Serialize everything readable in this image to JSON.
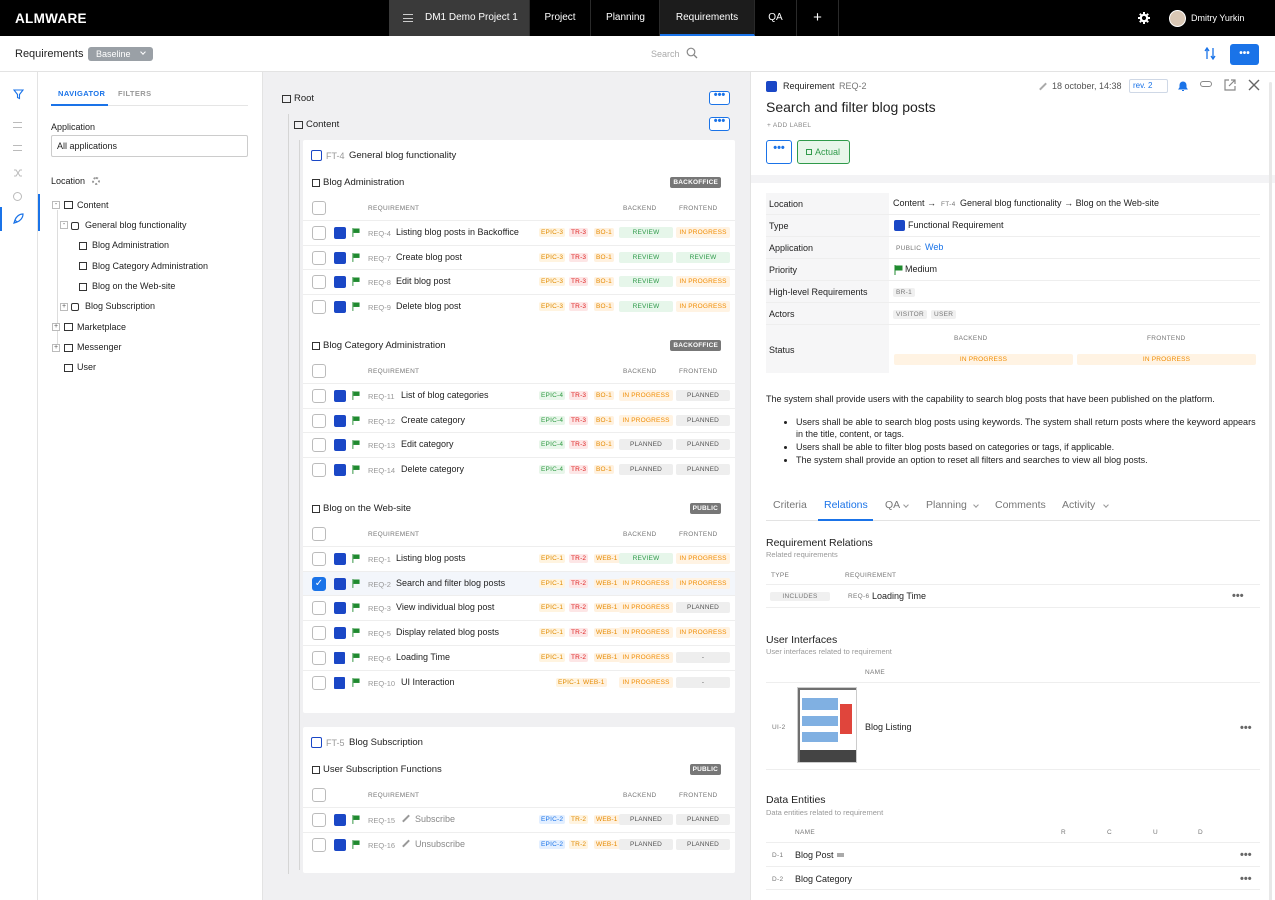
{
  "app": {
    "logo": "ALMWARE"
  },
  "top": {
    "project": "DM1 Demo Project 1",
    "tabs": {
      "project": "Project",
      "planning": "Planning",
      "requirements": "Requirements",
      "qa": "QA",
      "add": "+"
    },
    "user": "Dmitry Yurkin"
  },
  "header": {
    "title": "Requirements",
    "baseline": "Baseline",
    "search_placeholder": "Search",
    "more": "•••"
  },
  "nav": {
    "tab_navigator": "NAVIGATOR",
    "tab_filters": "FILTERS",
    "application_label": "Application",
    "application_value": "All applications",
    "location_label": "Location",
    "tree": {
      "content": "Content",
      "general": "General blog functionality",
      "blog_admin": "Blog Administration",
      "blog_cat": "Blog Category Administration",
      "blog_web": "Blog on the Web-site",
      "blog_sub": "Blog Subscription",
      "marketplace": "Marketplace",
      "messenger": "Messenger",
      "user": "User"
    }
  },
  "mid": {
    "root": "Root",
    "content": "Content",
    "dots": "•••",
    "ft4": {
      "id": "FT-4",
      "name": "General blog functionality"
    },
    "ft5": {
      "id": "FT-5",
      "name": "Blog Subscription"
    },
    "cols": {
      "req": "REQUIREMENT",
      "backend": "BACKEND",
      "frontend": "FRONTEND"
    },
    "g1": {
      "name": "Blog Administration",
      "badge": "BACKOFFICE",
      "rows": [
        {
          "id": "REQ-4",
          "name": "Listing blog posts in Backoffice",
          "t1": "EPIC-3",
          "t2": "TR-3",
          "t3": "BO-1",
          "be": "REVIEW",
          "fe": "IN PROGRESS"
        },
        {
          "id": "REQ-7",
          "name": "Create blog post",
          "t1": "EPIC-3",
          "t2": "TR-3",
          "t3": "BO-1",
          "be": "REVIEW",
          "fe": "REVIEW"
        },
        {
          "id": "REQ-8",
          "name": "Edit blog post",
          "t1": "EPIC-3",
          "t2": "TR-3",
          "t3": "BO-1",
          "be": "REVIEW",
          "fe": "IN PROGRESS"
        },
        {
          "id": "REQ-9",
          "name": "Delete blog post",
          "t1": "EPIC-3",
          "t2": "TR-3",
          "t3": "BO-1",
          "be": "REVIEW",
          "fe": "IN PROGRESS"
        }
      ]
    },
    "g2": {
      "name": "Blog Category Administration",
      "badge": "BACKOFFICE",
      "rows": [
        {
          "id": "REQ-11",
          "name": "List of blog categories",
          "t1": "EPIC-4",
          "t2": "TR-3",
          "t3": "BO-1",
          "be": "IN PROGRESS",
          "fe": "PLANNED"
        },
        {
          "id": "REQ-12",
          "name": "Create category",
          "t1": "EPIC-4",
          "t2": "TR-3",
          "t3": "BO-1",
          "be": "IN PROGRESS",
          "fe": "PLANNED"
        },
        {
          "id": "REQ-13",
          "name": "Edit category",
          "t1": "EPIC-4",
          "t2": "TR-3",
          "t3": "BO-1",
          "be": "PLANNED",
          "fe": "PLANNED"
        },
        {
          "id": "REQ-14",
          "name": "Delete category",
          "t1": "EPIC-4",
          "t2": "TR-3",
          "t3": "BO-1",
          "be": "PLANNED",
          "fe": "PLANNED"
        }
      ]
    },
    "g3": {
      "name": "Blog on the Web-site",
      "badge": "PUBLIC",
      "rows": [
        {
          "id": "REQ-1",
          "name": "Listing blog posts",
          "t1": "EPIC-1",
          "t2": "TR-2",
          "t3": "WEB-1",
          "be": "REVIEW",
          "fe": "IN PROGRESS"
        },
        {
          "id": "REQ-2",
          "name": "Search and filter blog posts",
          "t1": "EPIC-1",
          "t2": "TR-2",
          "t3": "WEB-1",
          "be": "IN PROGRESS",
          "fe": "IN PROGRESS"
        },
        {
          "id": "REQ-3",
          "name": "View individual blog post",
          "t1": "EPIC-1",
          "t2": "TR-2",
          "t3": "WEB-1",
          "be": "IN PROGRESS",
          "fe": "PLANNED"
        },
        {
          "id": "REQ-5",
          "name": "Display related blog posts",
          "t1": "EPIC-1",
          "t2": "TR-2",
          "t3": "WEB-1",
          "be": "IN PROGRESS",
          "fe": "IN PROGRESS"
        },
        {
          "id": "REQ-6",
          "name": "Loading Time",
          "t1": "EPIC-1",
          "t2": "TR-2",
          "t3": "WEB-1",
          "be": "IN PROGRESS",
          "fe": "-"
        },
        {
          "id": "REQ-10",
          "name": "UI Interaction",
          "t1": "EPIC-1",
          "t2": "",
          "t3": "WEB-1",
          "be": "IN PROGRESS",
          "fe": "-"
        }
      ]
    },
    "g4": {
      "name": "User Subscription Functions",
      "badge": "PUBLIC",
      "rows": [
        {
          "id": "REQ-15",
          "name": "Subscribe",
          "t1": "EPIC-2",
          "t2": "TR-2",
          "t3": "WEB-1",
          "be": "PLANNED",
          "fe": "PLANNED"
        },
        {
          "id": "REQ-16",
          "name": "Unsubscribe",
          "t1": "EPIC-2",
          "t2": "TR-2",
          "t3": "WEB-1",
          "be": "PLANNED",
          "fe": "PLANNED"
        }
      ]
    }
  },
  "detail": {
    "kind": "Requirement",
    "id": "REQ-2",
    "date": "18 october, 14:38",
    "rev": "rev. 2",
    "title": "Search and filter blog posts",
    "add_label": "+ ADD LABEL",
    "actual": "Actual",
    "props": {
      "location_l": "Location",
      "location_a": "Content →",
      "location_ft": "FT-4",
      "location_b": "General blog functionality → Blog on the Web-site",
      "type_l": "Type",
      "type_v": "Functional Requirement",
      "app_l": "Application",
      "app_tag": "PUBLIC",
      "app_v": "Web",
      "prio_l": "Priority",
      "prio_v": "Medium",
      "hl_l": "High-level Requirements",
      "hl_v": "BR-1",
      "actors_l": "Actors",
      "actor1": "VISITOR",
      "actor2": "USER",
      "status_l": "Status",
      "status_be": "BACKEND",
      "status_fe": "FRONTEND",
      "status_be_v": "IN PROGRESS",
      "status_fe_v": "IN PROGRESS"
    },
    "desc": "The system shall provide users with the capability to search blog posts that have been published on the platform.",
    "bullets": [
      "Users shall be able to search blog posts using keywords. The system shall return posts where the keyword appears in the title, content, or tags.",
      "Users shall be able to filter blog posts based on categories or tags, if applicable.",
      "The system shall provide an option to reset all filters and searches to view all blog posts."
    ],
    "tabs": {
      "criteria": "Criteria",
      "relations": "Relations",
      "qa": "QA",
      "planning": "Planning",
      "comments": "Comments",
      "activity": "Activity"
    },
    "rel": {
      "title": "Requirement Relations",
      "sub": "Related requirements",
      "col_type": "TYPE",
      "col_req": "REQUIREMENT",
      "type": "INCLUDES",
      "req_id": "REQ-6",
      "req_name": "Loading Time"
    },
    "ui": {
      "title": "User Interfaces",
      "sub": "User interfaces related to requirement",
      "col_name": "NAME",
      "id": "UI-2",
      "name": "Blog Listing"
    },
    "de": {
      "title": "Data Entities",
      "sub": "Data entities related to requirement",
      "col_name": "NAME",
      "r": "R",
      "c": "C",
      "u": "U",
      "d": "D",
      "rows": [
        {
          "id": "D-1",
          "name": "Blog Post"
        },
        {
          "id": "D-2",
          "name": "Blog Category"
        }
      ]
    }
  },
  "colors": {
    "accent": "#1a73e8",
    "topbar": "#000000",
    "flag": "#1f8a2f",
    "icon": "#1a47c6"
  }
}
